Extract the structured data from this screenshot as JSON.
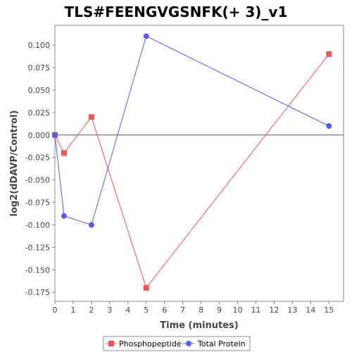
{
  "chart_data": {
    "type": "line",
    "title": "TLS#FEENGVGSNFK(+ 3)_v1",
    "xlabel": "Time (minutes)",
    "ylabel": "log2(dDAVP/Control)",
    "xlim": [
      0,
      15.8
    ],
    "ylim": [
      -0.185,
      0.122
    ],
    "xticks": [
      0,
      1,
      2,
      3,
      4,
      5,
      6,
      7,
      8,
      9,
      10,
      11,
      12,
      13,
      14,
      15
    ],
    "yticks": [
      -0.175,
      -0.15,
      -0.125,
      -0.1,
      -0.075,
      -0.05,
      -0.025,
      0.0,
      0.025,
      0.05,
      0.075,
      0.1
    ],
    "ytick_labels": [
      "-0.175",
      "-0.150",
      "-0.125",
      "-0.100",
      "-0.075",
      "-0.050",
      "-0.025",
      "0.000",
      "0.025",
      "0.050",
      "0.075",
      "0.100"
    ],
    "zero_line": true,
    "grid": false,
    "legend_position": "bottom",
    "series": [
      {
        "name": "Phosphopeptide",
        "color": "#e8585a",
        "marker": "square",
        "x": [
          0,
          0.5,
          2,
          5,
          15
        ],
        "y": [
          0.0,
          -0.02,
          0.02,
          -0.17,
          0.09
        ]
      },
      {
        "name": "Total Protein",
        "color": "#5b5be8",
        "marker": "circle",
        "x": [
          0,
          0.5,
          2,
          5,
          15
        ],
        "y": [
          0.0,
          -0.09,
          -0.1,
          0.11,
          0.01
        ]
      }
    ]
  }
}
